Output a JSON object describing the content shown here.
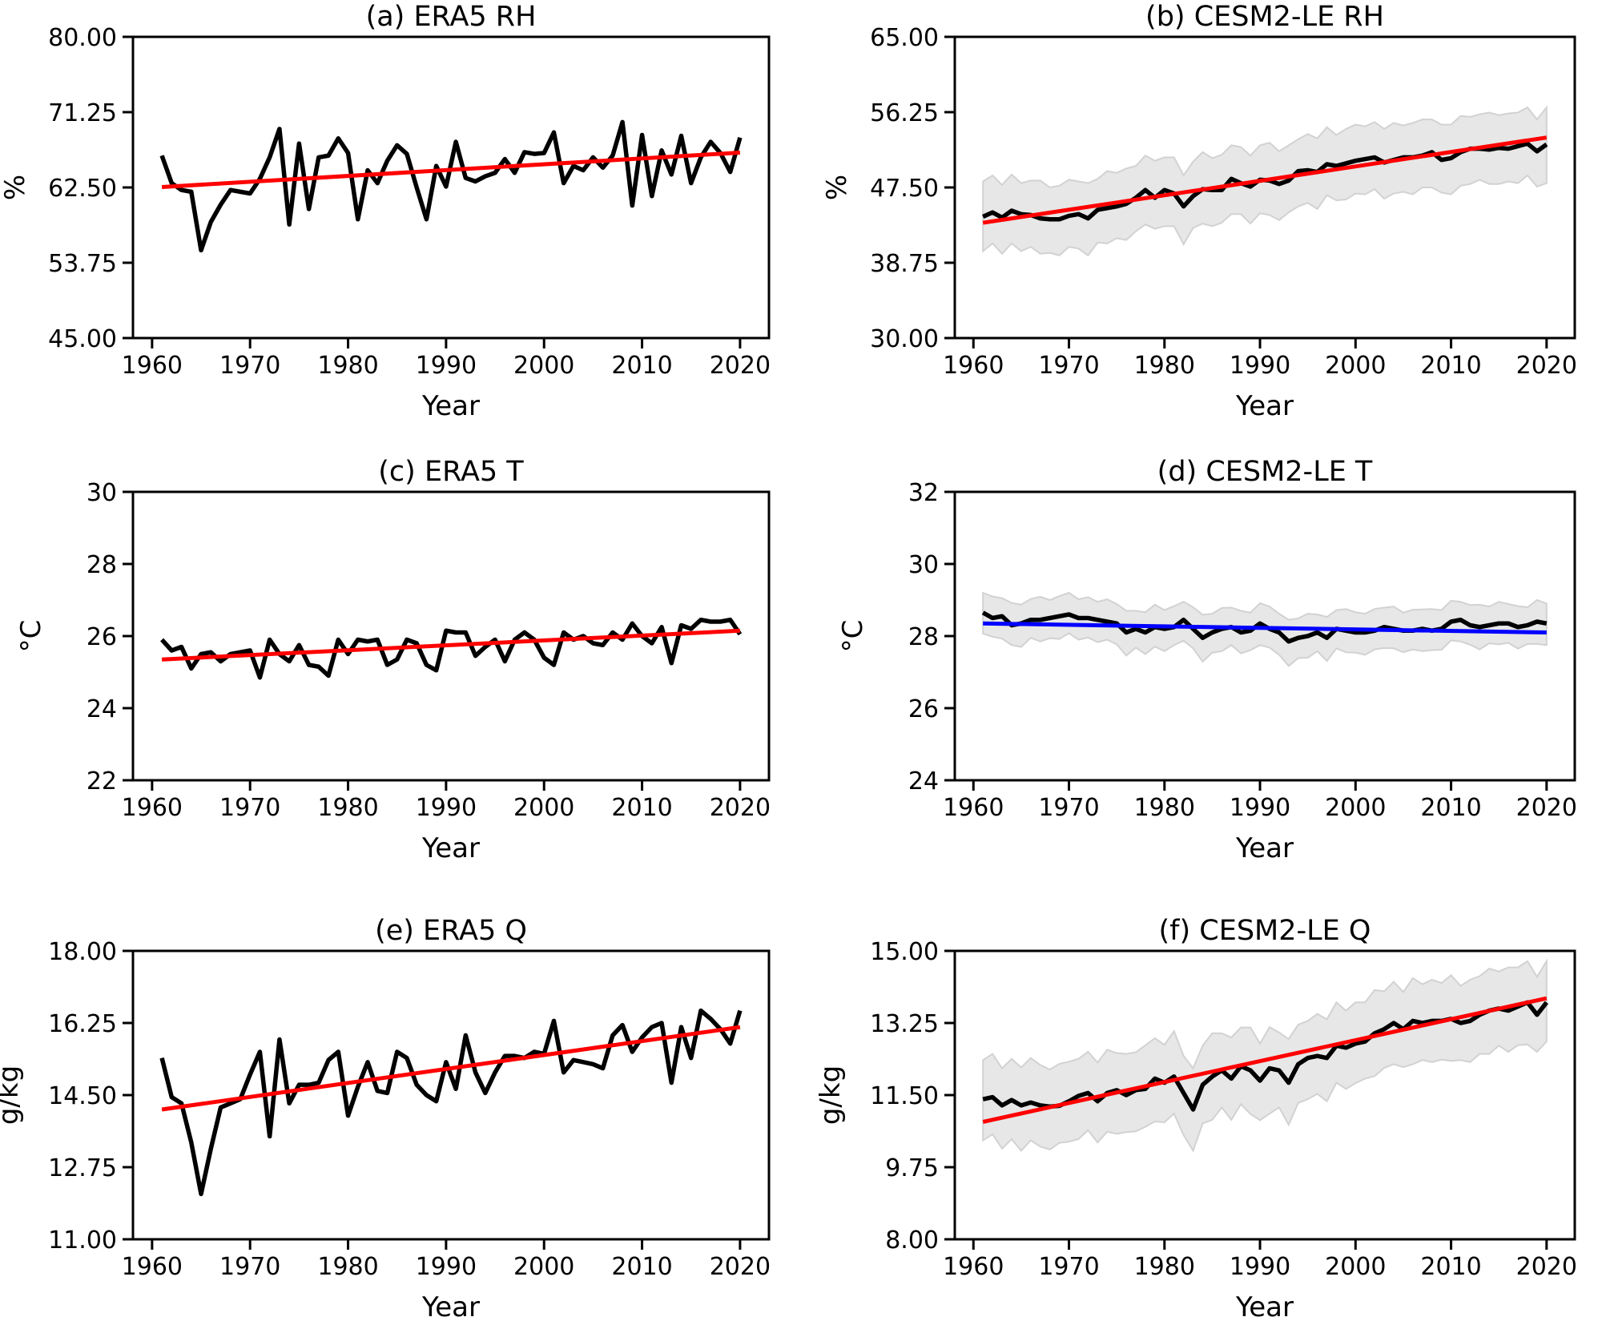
{
  "figure": {
    "background": "#ffffff",
    "x_start_year": 1961,
    "x_end_year": 2020,
    "xlim": [
      1958.05,
      2022.95
    ],
    "xticks": [
      1960,
      1970,
      1980,
      1990,
      2000,
      2010,
      2020
    ],
    "x_tick_labels": [
      "1960",
      "1970",
      "1980",
      "1990",
      "2000",
      "2010",
      "2020"
    ],
    "xlabel": "Year"
  },
  "colors": {
    "series": "#000000",
    "trend_red": "#ff0000",
    "trend_blue": "#0000ff",
    "band_fill": "#e7e7e7",
    "band_edge": "#d2d2d2",
    "axis": "#000000",
    "text": "#000000"
  },
  "chart_data": [
    {
      "type": "line",
      "panel": "a",
      "title": "(a) ERA5 RH",
      "ylabel": "%",
      "xlabel": "Year",
      "ylim": [
        45,
        80
      ],
      "yticks": [
        45.0,
        53.75,
        62.5,
        71.25,
        80.0
      ],
      "ytick_labels": [
        "45.00",
        "53.75",
        "62.50",
        "71.25",
        "80.00"
      ],
      "x_start": 1961,
      "values": [
        66.2,
        63.0,
        62.2,
        62.0,
        55.2,
        58.5,
        60.5,
        62.2,
        62.0,
        61.8,
        63.5,
        66.0,
        69.3,
        58.2,
        67.6,
        60.0,
        66.0,
        66.2,
        68.2,
        66.5,
        58.8,
        64.5,
        63.0,
        65.6,
        67.4,
        66.4,
        62.5,
        58.8,
        65.0,
        62.6,
        67.8,
        63.6,
        63.2,
        63.8,
        64.2,
        65.8,
        64.2,
        66.6,
        66.4,
        66.5,
        68.9,
        63.0,
        65.0,
        64.5,
        66.0,
        64.8,
        66.2,
        70.1,
        60.4,
        68.6,
        61.5,
        66.8,
        64.0,
        68.5,
        63.0,
        66.0,
        67.8,
        66.5,
        64.3,
        68.3
      ],
      "trend": {
        "start": 62.55,
        "end": 66.55,
        "color": "trend_red"
      },
      "band": null
    },
    {
      "type": "line",
      "panel": "b",
      "title": "(b) CESM2-LE RH",
      "ylabel": "%",
      "xlabel": "Year",
      "ylim": [
        30,
        65
      ],
      "yticks": [
        30.0,
        38.75,
        47.5,
        56.25,
        65.0
      ],
      "ytick_labels": [
        "30.00",
        "38.75",
        "47.50",
        "56.25",
        "65.00"
      ],
      "x_start": 1961,
      "values": [
        44.1,
        44.6,
        44.0,
        44.8,
        44.4,
        44.3,
        43.9,
        43.8,
        43.8,
        44.2,
        44.4,
        43.9,
        44.9,
        45.1,
        45.3,
        45.6,
        46.3,
        47.2,
        46.3,
        47.2,
        46.8,
        45.3,
        46.5,
        47.3,
        47.2,
        47.2,
        48.5,
        48.0,
        47.6,
        48.4,
        48.3,
        47.9,
        48.3,
        49.4,
        49.5,
        49.3,
        50.2,
        50.0,
        50.3,
        50.6,
        50.8,
        51.0,
        50.4,
        50.7,
        51.0,
        51.0,
        51.2,
        51.6,
        50.7,
        50.9,
        51.6,
        52.0,
        52.0,
        51.9,
        52.1,
        52.0,
        52.3,
        52.6,
        51.7,
        52.5
      ],
      "trend": {
        "start": 43.4,
        "end": 53.3,
        "color": "trend_red"
      },
      "band": {
        "upper_offset": [
          4.1,
          4.3,
          3.8,
          4.2,
          3.6,
          4.0,
          4.4,
          3.7,
          3.9,
          4.2,
          3.8,
          4.1,
          3.6,
          4.3,
          3.9,
          4.1,
          3.7,
          4.0,
          4.3,
          3.8,
          4.2,
          3.6,
          4.0,
          4.3,
          3.7,
          4.1,
          3.9,
          4.2,
          3.6,
          4.0,
          4.4,
          3.8,
          4.1,
          3.7,
          4.2,
          3.9,
          4.3,
          3.6,
          4.0,
          4.2,
          3.8,
          4.1,
          3.9,
          4.3,
          3.7,
          4.0,
          4.2,
          3.8,
          4.1,
          3.9,
          4.2,
          3.7,
          4.0,
          4.3,
          3.8,
          4.1,
          3.9,
          4.2,
          3.7,
          4.3
        ],
        "lower_offset": [
          4.0,
          3.6,
          4.2,
          3.8,
          4.3,
          3.7,
          4.1,
          3.9,
          4.2,
          3.6,
          4.0,
          4.3,
          3.8,
          4.1,
          3.7,
          4.2,
          3.9,
          4.0,
          3.6,
          4.2,
          3.8,
          4.4,
          3.7,
          4.0,
          4.2,
          3.8,
          4.1,
          3.6,
          4.3,
          3.9,
          4.0,
          4.2,
          3.7,
          4.1,
          3.8,
          4.3,
          3.6,
          4.0,
          4.2,
          3.8,
          4.1,
          3.7,
          4.2,
          3.9,
          4.0,
          4.3,
          3.7,
          4.1,
          3.8,
          4.2,
          3.9,
          4.1,
          3.6,
          4.0,
          4.2,
          3.8,
          4.3,
          3.7,
          4.1,
          4.5
        ]
      }
    },
    {
      "type": "line",
      "panel": "c",
      "title": "(c) ERA5 T",
      "ylabel": "°C",
      "xlabel": "Year",
      "ylim": [
        22,
        30
      ],
      "yticks": [
        22,
        24,
        26,
        28,
        30
      ],
      "ytick_labels": [
        "22",
        "24",
        "26",
        "28",
        "30"
      ],
      "x_start": 1961,
      "values": [
        25.9,
        25.6,
        25.7,
        25.1,
        25.5,
        25.55,
        25.3,
        25.5,
        25.55,
        25.6,
        24.85,
        25.9,
        25.5,
        25.3,
        25.75,
        25.2,
        25.15,
        24.9,
        25.9,
        25.5,
        25.9,
        25.85,
        25.9,
        25.2,
        25.35,
        25.9,
        25.8,
        25.2,
        25.05,
        26.15,
        26.1,
        26.1,
        25.45,
        25.7,
        25.9,
        25.3,
        25.9,
        26.1,
        25.9,
        25.4,
        25.2,
        26.1,
        25.9,
        26.0,
        25.8,
        25.75,
        26.1,
        25.9,
        26.35,
        26.0,
        25.8,
        26.25,
        25.25,
        26.3,
        26.2,
        26.45,
        26.4,
        26.4,
        26.45,
        26.05
      ],
      "trend": {
        "start": 25.35,
        "end": 26.15,
        "color": "trend_red"
      },
      "band": null
    },
    {
      "type": "line",
      "panel": "d",
      "title": "(d) CESM2-LE T",
      "ylabel": "°C",
      "xlabel": "Year",
      "ylim": [
        24,
        32
      ],
      "yticks": [
        24,
        26,
        28,
        30,
        32
      ],
      "ytick_labels": [
        "24",
        "26",
        "28",
        "30",
        "32"
      ],
      "x_start": 1961,
      "values": [
        28.65,
        28.5,
        28.55,
        28.3,
        28.35,
        28.45,
        28.45,
        28.5,
        28.55,
        28.6,
        28.5,
        28.5,
        28.45,
        28.4,
        28.35,
        28.1,
        28.2,
        28.1,
        28.25,
        28.2,
        28.25,
        28.45,
        28.2,
        27.95,
        28.1,
        28.2,
        28.25,
        28.1,
        28.15,
        28.35,
        28.2,
        28.1,
        27.85,
        27.95,
        28.0,
        28.1,
        27.95,
        28.2,
        28.15,
        28.1,
        28.1,
        28.15,
        28.25,
        28.2,
        28.15,
        28.15,
        28.2,
        28.15,
        28.2,
        28.4,
        28.45,
        28.3,
        28.25,
        28.3,
        28.35,
        28.35,
        28.25,
        28.3,
        28.4,
        28.35
      ],
      "trend": {
        "start": 28.35,
        "end": 28.1,
        "color": "trend_blue"
      },
      "band": {
        "upper_offset": [
          0.55,
          0.6,
          0.5,
          0.62,
          0.52,
          0.58,
          0.64,
          0.5,
          0.56,
          0.6,
          0.52,
          0.58,
          0.5,
          0.62,
          0.54,
          0.6,
          0.5,
          0.56,
          0.62,
          0.52,
          0.58,
          0.5,
          0.6,
          0.64,
          0.52,
          0.58,
          0.54,
          0.6,
          0.5,
          0.56,
          0.62,
          0.52,
          0.6,
          0.54,
          0.62,
          0.5,
          0.58,
          0.52,
          0.6,
          0.56,
          0.52,
          0.6,
          0.54,
          0.62,
          0.5,
          0.58,
          0.54,
          0.6,
          0.52,
          0.58,
          0.5,
          0.56,
          0.62,
          0.52,
          0.6,
          0.54,
          0.58,
          0.5,
          0.6,
          0.55
        ],
        "lower_offset": [
          0.58,
          0.52,
          0.62,
          0.55,
          0.65,
          0.5,
          0.6,
          0.56,
          0.63,
          0.52,
          0.6,
          0.54,
          0.62,
          0.5,
          0.58,
          0.64,
          0.52,
          0.6,
          0.54,
          0.62,
          0.5,
          0.58,
          0.54,
          0.66,
          0.56,
          0.62,
          0.5,
          0.58,
          0.54,
          0.6,
          0.52,
          0.62,
          0.68,
          0.56,
          0.6,
          0.52,
          0.64,
          0.54,
          0.6,
          0.56,
          0.62,
          0.52,
          0.58,
          0.54,
          0.6,
          0.52,
          0.62,
          0.54,
          0.58,
          0.52,
          0.6,
          0.54,
          0.62,
          0.5,
          0.58,
          0.54,
          0.6,
          0.52,
          0.62,
          0.6
        ]
      }
    },
    {
      "type": "line",
      "panel": "e",
      "title": "(e) ERA5 Q",
      "ylabel": "g/kg",
      "xlabel": "Year",
      "ylim": [
        11,
        18
      ],
      "yticks": [
        11.0,
        12.75,
        14.5,
        16.25,
        18.0
      ],
      "ytick_labels": [
        "11.00",
        "12.75",
        "14.50",
        "16.25",
        "18.00"
      ],
      "x_start": 1961,
      "values": [
        15.4,
        14.45,
        14.3,
        13.35,
        12.1,
        13.2,
        14.2,
        14.3,
        14.4,
        15.0,
        15.55,
        13.5,
        15.85,
        14.3,
        14.75,
        14.75,
        14.8,
        15.35,
        15.55,
        14.0,
        14.7,
        15.3,
        14.6,
        14.55,
        15.55,
        15.4,
        14.75,
        14.5,
        14.35,
        15.3,
        14.65,
        15.95,
        15.05,
        14.55,
        15.05,
        15.45,
        15.45,
        15.4,
        15.55,
        15.5,
        16.3,
        15.05,
        15.35,
        15.3,
        15.25,
        15.15,
        15.95,
        16.2,
        15.55,
        15.9,
        16.15,
        16.25,
        14.8,
        16.15,
        15.4,
        16.55,
        16.35,
        16.1,
        15.75,
        16.55
      ],
      "trend": {
        "start": 14.15,
        "end": 16.15,
        "color": "trend_red"
      },
      "band": null
    },
    {
      "type": "line",
      "panel": "f",
      "title": "(f) CESM2-LE Q",
      "ylabel": "g/kg",
      "xlabel": "Year",
      "ylim": [
        8,
        15
      ],
      "yticks": [
        8.0,
        9.75,
        11.5,
        13.25,
        15.0
      ],
      "ytick_labels": [
        "8.00",
        "9.75",
        "11.50",
        "13.25",
        "15.00"
      ],
      "x_start": 1961,
      "values": [
        11.4,
        11.45,
        11.25,
        11.38,
        11.25,
        11.32,
        11.25,
        11.22,
        11.24,
        11.35,
        11.48,
        11.55,
        11.35,
        11.55,
        11.62,
        11.5,
        11.62,
        11.65,
        11.9,
        11.8,
        11.95,
        11.55,
        11.15,
        11.75,
        11.95,
        12.1,
        11.9,
        12.2,
        12.1,
        11.85,
        12.15,
        12.1,
        11.8,
        12.25,
        12.4,
        12.45,
        12.4,
        12.7,
        12.65,
        12.75,
        12.8,
        13.0,
        13.1,
        13.25,
        13.1,
        13.3,
        13.25,
        13.3,
        13.3,
        13.35,
        13.25,
        13.3,
        13.45,
        13.55,
        13.6,
        13.55,
        13.65,
        13.75,
        13.45,
        13.75
      ],
      "trend": {
        "start": 10.85,
        "end": 13.85,
        "color": "trend_red"
      },
      "band": {
        "upper_offset": [
          0.95,
          1.05,
          0.9,
          1.0,
          0.92,
          1.08,
          0.98,
          0.9,
          1.02,
          0.96,
          0.9,
          1.0,
          0.94,
          1.05,
          0.9,
          1.0,
          0.92,
          1.06,
          0.98,
          0.92,
          1.1,
          0.9,
          1.0,
          0.95,
          1.05,
          0.9,
          1.0,
          0.94,
          1.04,
          0.9,
          1.0,
          0.92,
          1.06,
          0.96,
          0.9,
          1.02,
          0.94,
          1.05,
          0.9,
          1.0,
          0.95,
          1.05,
          0.92,
          1.0,
          0.9,
          1.04,
          0.94,
          1.0,
          0.92,
          1.06,
          0.9,
          1.0,
          0.94,
          1.02,
          0.9,
          1.05,
          0.95,
          1.0,
          0.92,
          1.0
        ],
        "lower_offset": [
          1.0,
          0.9,
          1.05,
          0.95,
          1.1,
          0.92,
          1.0,
          1.04,
          0.9,
          0.98,
          1.05,
          0.9,
          1.0,
          0.94,
          1.06,
          0.9,
          1.0,
          0.92,
          1.04,
          0.96,
          0.9,
          1.02,
          1.0,
          0.94,
          1.05,
          0.9,
          1.0,
          0.92,
          1.06,
          0.96,
          1.1,
          0.9,
          1.02,
          0.94,
          1.0,
          0.92,
          1.05,
          0.9,
          1.0,
          0.96,
          0.9,
          1.04,
          0.94,
          1.0,
          0.92,
          1.05,
          0.9,
          1.0,
          0.94,
          1.02,
          0.9,
          1.0,
          0.95,
          1.05,
          0.9,
          1.0,
          0.94,
          1.02,
          0.9,
          0.95
        ]
      }
    }
  ]
}
